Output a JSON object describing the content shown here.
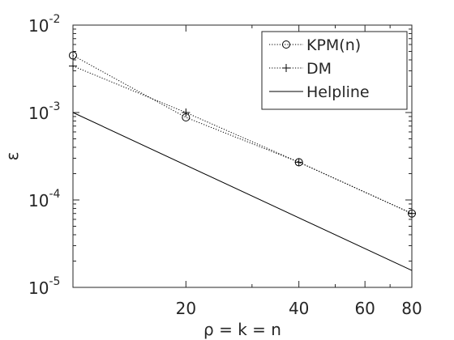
{
  "chart_data": {
    "type": "line",
    "title": "",
    "xlabel": "ρ = k = n",
    "ylabel": "ε",
    "xscale": "log",
    "yscale": "log",
    "xlim": [
      10,
      80
    ],
    "ylim": [
      1e-05,
      0.01
    ],
    "x_ticks": [
      {
        "value": 20,
        "label": "20"
      },
      {
        "value": 40,
        "label": "40"
      },
      {
        "value": 60,
        "label": "60"
      },
      {
        "value": 80,
        "label": "80"
      }
    ],
    "y_ticks": [
      {
        "value": 0.01,
        "base": "10",
        "exp": "-2"
      },
      {
        "value": 0.001,
        "base": "10",
        "exp": "-3"
      },
      {
        "value": 0.0001,
        "base": "10",
        "exp": "-4"
      },
      {
        "value": 1e-05,
        "base": "10",
        "exp": "-5"
      }
    ],
    "grid": false,
    "legend_position": "top-right",
    "series": [
      {
        "name": "KPM(n)",
        "marker": "circle",
        "line": "dotted",
        "color": "#000000",
        "x": [
          10,
          20,
          40,
          80
        ],
        "y": [
          0.0045,
          0.00088,
          0.00027,
          7e-05
        ]
      },
      {
        "name": "DM",
        "marker": "plus",
        "line": "dotted",
        "color": "#000000",
        "x": [
          10,
          20,
          40,
          80
        ],
        "y": [
          0.0034,
          0.001,
          0.00027,
          7e-05
        ]
      },
      {
        "name": "Helpline",
        "marker": "none",
        "line": "solid",
        "color": "#000000",
        "x": [
          10,
          80
        ],
        "y": [
          0.001,
          1.56e-05
        ]
      }
    ]
  }
}
